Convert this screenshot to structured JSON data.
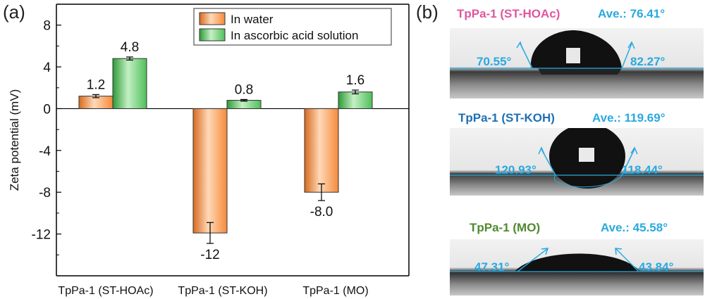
{
  "panel_a": {
    "label": "(a)",
    "chart_data": {
      "type": "bar",
      "categories": [
        "TpPa-1 (ST-HOAc)",
        "TpPa-1 (ST-KOH)",
        "TpPa-1 (MO)"
      ],
      "series": [
        {
          "name": "In water",
          "values": [
            1.2,
            -11.9,
            -8.0
          ],
          "errors": [
            0.15,
            1.0,
            0.8
          ],
          "labels": [
            "1.2",
            "-12",
            "-8.0"
          ],
          "color": "#f58a3a"
        },
        {
          "name": "In ascorbic acid solution",
          "values": [
            4.8,
            0.8,
            1.6
          ],
          "errors": [
            0.15,
            0.08,
            0.18
          ],
          "labels": [
            "4.8",
            "0.8",
            "1.6"
          ],
          "color": "#4fbf5a"
        }
      ],
      "ylabel": "Zeta potential (mV)",
      "ylim": [
        -16,
        10
      ],
      "yticks": [
        "8",
        "4",
        "0",
        "-4",
        "-8",
        "-12"
      ],
      "grid": false,
      "legend_position": "top-right"
    }
  },
  "panel_b": {
    "label": "(b)",
    "samples": [
      {
        "title": "TpPa-1 (ST-HOAc)",
        "title_color": "#e0559f",
        "ave": "Ave.: 76.41°",
        "left_angle": "70.55°",
        "right_angle": "82.27°"
      },
      {
        "title": "TpPa-1 (ST-KOH)",
        "title_color": "#1f6fb5",
        "ave": "Ave.: 119.69°",
        "left_angle": "120.93°",
        "right_angle": "118.44°"
      },
      {
        "title": "TpPa-1 (MO)",
        "title_color": "#4e8a2e",
        "ave": "Ave.: 45.58°",
        "left_angle": "47.31°",
        "right_angle": "43.84°"
      }
    ],
    "accent_color": "#29a9e0"
  }
}
